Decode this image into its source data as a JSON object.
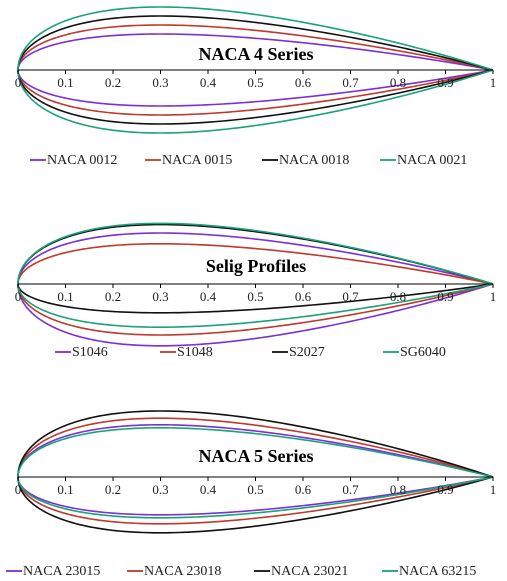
{
  "chart_data": [
    {
      "type": "line",
      "title": "NACA 4 Series",
      "xlim": [
        0,
        1
      ],
      "x_ticks": [
        "0",
        "0.1",
        "0.2",
        "0.3",
        "0.4",
        "0.5",
        "0.6",
        "0.7",
        "0.8",
        "0.9",
        "1"
      ],
      "legend_position": "bottom",
      "series": [
        {
          "name": "NACA 0012",
          "color": "#7b2fd6",
          "upper": 0.06,
          "lower": -0.06,
          "camber": 0,
          "camber_pos": 0.4
        },
        {
          "name": "NACA 0015",
          "color": "#c0392b",
          "upper": 0.075,
          "lower": -0.075,
          "camber": 0,
          "camber_pos": 0.4
        },
        {
          "name": "NACA 0018",
          "color": "#111111",
          "upper": 0.09,
          "lower": -0.09,
          "camber": 0,
          "camber_pos": 0.4
        },
        {
          "name": "NACA 0021",
          "color": "#1aa37a",
          "upper": 0.105,
          "lower": -0.105,
          "camber": 0,
          "camber_pos": 0.4
        }
      ]
    },
    {
      "type": "line",
      "title": "Selig Profiles",
      "xlim": [
        0,
        1
      ],
      "x_ticks": [
        "0",
        "0.1",
        "0.2",
        "0.3",
        "0.4",
        "0.5",
        "0.6",
        "0.7",
        "0.8",
        "0.9",
        "1"
      ],
      "legend_position": "bottom",
      "series": [
        {
          "name": "S1046",
          "color": "#7b2fd6",
          "upper": 0.085,
          "lower": -0.103,
          "camber": 0,
          "camber_pos": 0.4
        },
        {
          "name": "S1048",
          "color": "#c0392b",
          "upper": 0.067,
          "lower": -0.085,
          "camber": 0,
          "camber_pos": 0.4
        },
        {
          "name": "S2027",
          "color": "#111111",
          "upper": 0.099,
          "lower": -0.048,
          "camber": 0,
          "camber_pos": 0.4
        },
        {
          "name": "SG6040",
          "color": "#1aa37a",
          "upper": 0.101,
          "lower": -0.072,
          "camber": 0,
          "camber_pos": 0.4
        }
      ]
    },
    {
      "type": "line",
      "title": "NACA 5 Series",
      "xlim": [
        0,
        1
      ],
      "x_ticks": [
        "0",
        "0.1",
        "0.2",
        "0.3",
        "0.4",
        "0.5",
        "0.6",
        "0.7",
        "0.8",
        "0.9",
        "1"
      ],
      "legend_position": "bottom",
      "series": [
        {
          "name": "NACA 23015",
          "color": "#7b2fd6",
          "upper": 0.087,
          "lower": -0.063,
          "camber": 0,
          "camber_pos": 0.4
        },
        {
          "name": "NACA 23018",
          "color": "#c0392b",
          "upper": 0.098,
          "lower": -0.078,
          "camber": 0,
          "camber_pos": 0.4
        },
        {
          "name": "NACA 23021",
          "color": "#111111",
          "upper": 0.11,
          "lower": -0.093,
          "camber": 0,
          "camber_pos": 0.4
        },
        {
          "name": "NACA 63215",
          "color": "#1aa37a",
          "upper": 0.082,
          "lower": -0.068,
          "camber": 0,
          "camber_pos": 0.4
        }
      ]
    }
  ]
}
